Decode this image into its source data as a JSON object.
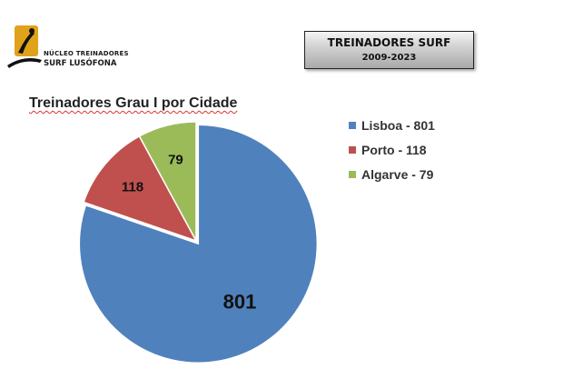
{
  "logo": {
    "line1": "NÚCLEO TREINADORES",
    "line2": "SURF LUSÓFONA",
    "icon": "surfer-logo-icon"
  },
  "title_box": {
    "title": "TREINADORES SURF",
    "years": "2009-2023"
  },
  "colors": {
    "lisboa": "#4f81bd",
    "porto": "#c0504d",
    "algarve": "#9bbb59"
  },
  "chart_data": {
    "type": "pie",
    "title": "Treinadores Grau I por Cidade",
    "categories": [
      "Lisboa",
      "Porto",
      "Algarve"
    ],
    "values": [
      801,
      118,
      79
    ],
    "legend_labels": [
      "Lisboa - 801",
      "Porto - 118",
      "Algarve - 79"
    ],
    "data_labels": [
      "801",
      "118",
      "79"
    ],
    "legend_position": "right",
    "colors": [
      "#4f81bd",
      "#c0504d",
      "#9bbb59"
    ]
  }
}
